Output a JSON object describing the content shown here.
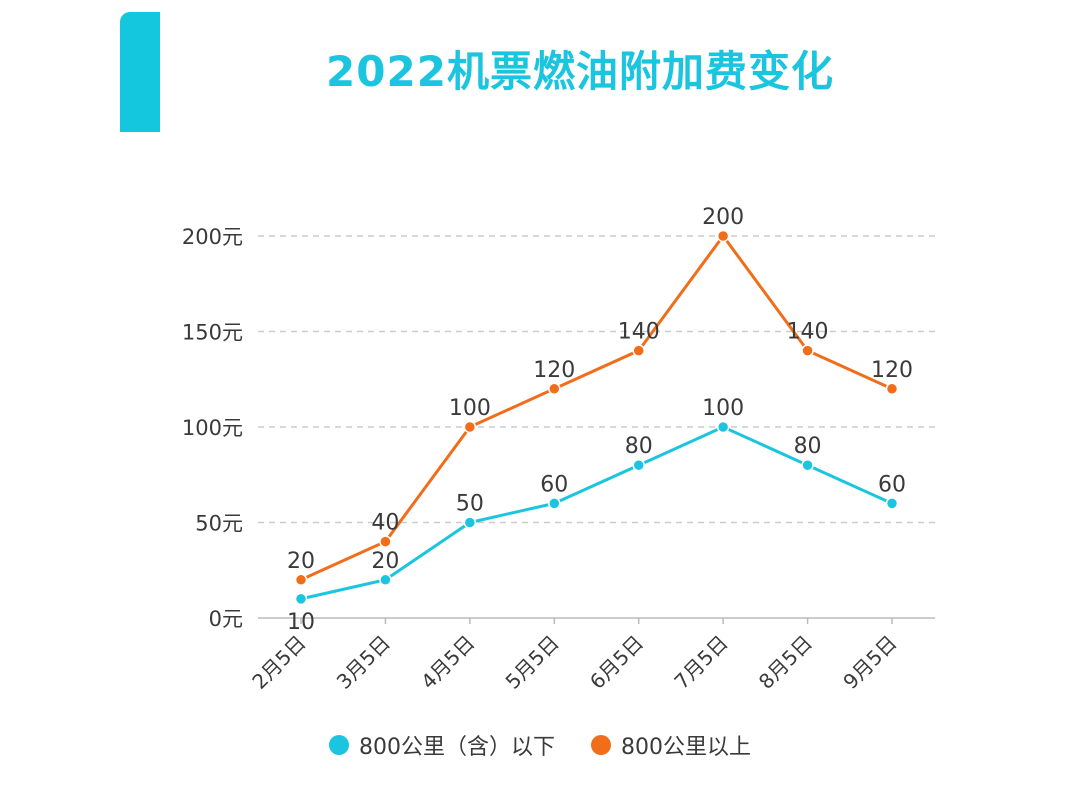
{
  "chart_data": {
    "type": "line",
    "title": "2022机票燃油附加费变化",
    "categories": [
      "2月5日",
      "3月5日",
      "4月5日",
      "5月5日",
      "6月5日",
      "7月5日",
      "8月5日",
      "9月5日"
    ],
    "series": [
      {
        "name": "800公里（含）以下",
        "color": "#1cc5df",
        "values": [
          10,
          20,
          50,
          60,
          80,
          100,
          80,
          60
        ]
      },
      {
        "name": "800公里以上",
        "color": "#f26d1a",
        "values": [
          20,
          40,
          100,
          120,
          140,
          200,
          140,
          120
        ]
      }
    ],
    "ylim": [
      0,
      200
    ],
    "yticks": [
      "0元",
      "50元",
      "100元",
      "150元",
      "200元"
    ],
    "grid": true,
    "legend": "bottom"
  },
  "colors": {
    "accent": "#14c6de",
    "title": "#1cc5df",
    "grid": "#cccccc",
    "axis": "#bbbbbb",
    "text": "#3a3a3a"
  }
}
